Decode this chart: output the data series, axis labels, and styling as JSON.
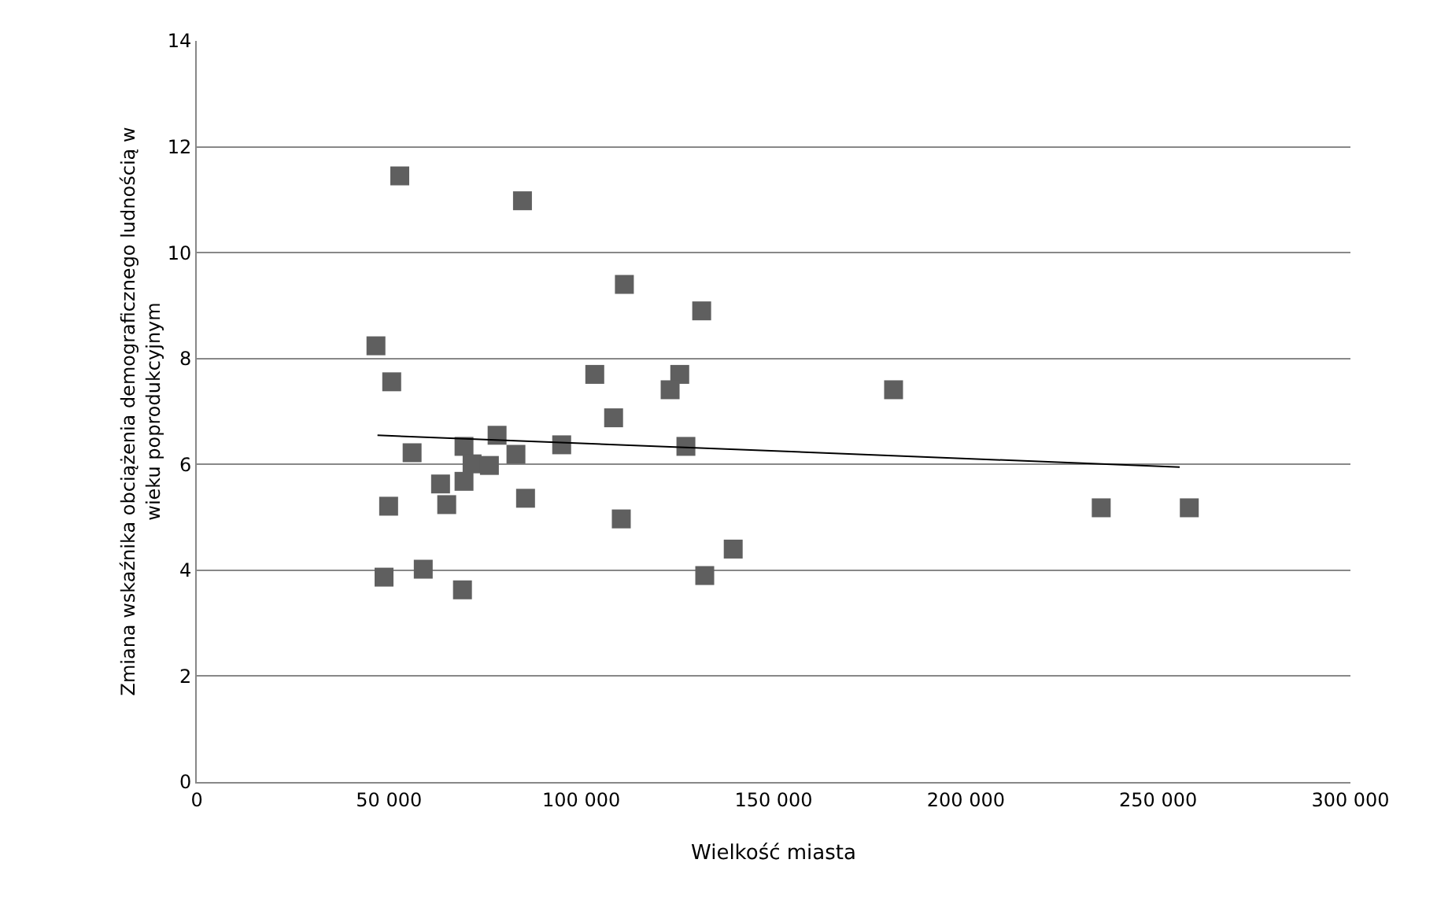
{
  "chart_data": {
    "type": "scatter",
    "xlabel": "Wielkość miasta",
    "ylabel": "Zmiana wskaźnika obciążenia demograficznego ludnością w wieku poprodukcyjnym",
    "grid": "y",
    "xlim": [
      0,
      300000
    ],
    "xticks": [
      0,
      {
        "value": 50000,
        "label": "50 000"
      },
      {
        "value": 100000,
        "label": "100 000"
      },
      {
        "value": 150000,
        "label": "150 000"
      },
      {
        "value": 200000,
        "label": "200 000"
      },
      {
        "value": 250000,
        "label": "250 000"
      },
      {
        "value": 300000,
        "label": "300 000"
      }
    ],
    "ylim": [
      0,
      14
    ],
    "yticks": [
      0,
      2,
      4,
      6,
      8,
      10,
      12,
      14
    ],
    "series": [
      {
        "marker": "square",
        "color": "#5f5f5f",
        "x": [
          52800,
          84700,
          111200,
          46600,
          50700,
          103500,
          131300,
          125600,
          123100,
          181200,
          108400,
          127200,
          110400,
          139500,
          132100,
          235200,
          258100,
          56000,
          69500,
          78100,
          83000,
          94900,
          71600,
          76100,
          63400,
          69500,
          49900,
          65000,
          85500,
          48700,
          58900,
          69100
        ],
        "values": [
          11.45,
          10.98,
          9.4,
          8.24,
          7.56,
          7.7,
          8.9,
          7.7,
          7.41,
          7.41,
          6.88,
          6.34,
          4.97,
          4.4,
          3.9,
          5.18,
          5.18,
          6.22,
          6.34,
          6.55,
          6.19,
          6.37,
          6.01,
          5.98,
          5.63,
          5.68,
          5.21,
          5.24,
          5.36,
          3.87,
          4.02,
          3.63
        ]
      },
      {
        "type": "line",
        "color": "#000000",
        "x": [
          47000,
          255600
        ],
        "values": [
          6.55,
          5.95
        ]
      }
    ]
  }
}
